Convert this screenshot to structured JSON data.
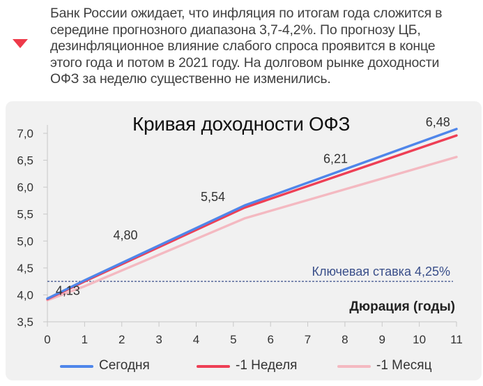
{
  "intro": {
    "text": "Банк России ожидает, что инфляция по итогам года сложится в середине прогнозного диапазона 3,7-4,2%. По прогнозу ЦБ, дезинфляционное влияние слабого спроса проявится в конце этого года и потом в 2021 году. На долговом рынке доходности ОФЗ за неделю существенно не изменились.",
    "icon": "down-triangle",
    "icon_color": "#ee3a4a"
  },
  "chart_data": {
    "type": "line",
    "title": "Кривая доходности ОФЗ",
    "xlabel": "Дюрация (годы)",
    "ylabel": "",
    "xlim": [
      0,
      11
    ],
    "ylim": [
      3.5,
      7.0
    ],
    "x_ticks": [
      0,
      1,
      2,
      3,
      4,
      5,
      6,
      7,
      8,
      9,
      10,
      11
    ],
    "y_ticks": [
      "3,5",
      "4,0",
      "4,5",
      "5,0",
      "5,5",
      "6,0",
      "6,5",
      "7,0"
    ],
    "y_tick_values": [
      3.5,
      4.0,
      4.5,
      5.0,
      5.5,
      6.0,
      6.5,
      7.0
    ],
    "series": [
      {
        "name": "-1 Месяц",
        "color": "#f4b9c1",
        "x": [
          0,
          1,
          5.3,
          11
        ],
        "y": [
          3.9,
          4.16,
          5.42,
          6.56
        ]
      },
      {
        "name": "-1 Неделя",
        "color": "#ee3f55",
        "x": [
          0,
          1,
          5.3,
          11
        ],
        "y": [
          3.92,
          4.25,
          5.62,
          6.96
        ]
      },
      {
        "name": "Сегодня",
        "color": "#4f86ea",
        "x": [
          0,
          1,
          5.3,
          11
        ],
        "y": [
          3.93,
          4.27,
          5.66,
          7.08
        ]
      }
    ],
    "reference_line": {
      "y": 4.25,
      "label": "Ключевая ставка 4,25%",
      "color": "#3a4f8a"
    },
    "data_labels": [
      {
        "text": "4,13",
        "x": 0.55,
        "y": 4.0
      },
      {
        "text": "4,80",
        "x": 2.1,
        "y": 5.03
      },
      {
        "text": "5,54",
        "x": 4.45,
        "y": 5.74
      },
      {
        "text": "6,21",
        "x": 7.75,
        "y": 6.45
      },
      {
        "text": "6,48",
        "x": 10.5,
        "y": 7.13
      }
    ],
    "legend": [
      "Сегодня",
      "-1 Неделя",
      "-1 Месяц"
    ],
    "legend_colors": [
      "#4f86ea",
      "#ee3f55",
      "#f4b9c1"
    ],
    "legend_position": "bottom",
    "grid": false
  }
}
